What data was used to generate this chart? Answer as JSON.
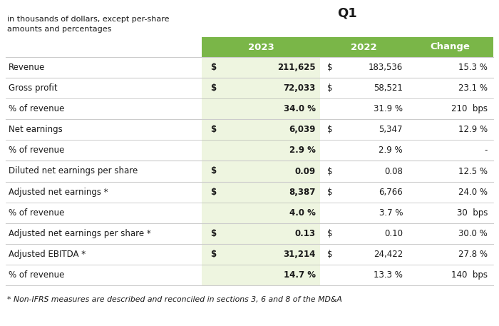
{
  "title": "Q1",
  "subtitle_line1": "in thousands of dollars, except per-share",
  "subtitle_line2": "amounts and percentages",
  "header_labels": [
    "2023",
    "2022",
    "Change"
  ],
  "header_bg_color": "#7ab648",
  "header_text_color": "#ffffff",
  "col1_bg_color": "#eef5e0",
  "bg_color": "#ffffff",
  "footnote": "* Non-IFRS measures are described and reconciled in sections 3, 6 and 8 of the MD&A",
  "rows": [
    {
      "label": "Revenue",
      "col1_dollar": "$",
      "col1_value": "211,625",
      "col1_bold": true,
      "col2_dollar": "$",
      "col2_value": "183,536",
      "col2_bold": false,
      "col3_value": "15.3 %",
      "separator_above": true
    },
    {
      "label": "Gross profit",
      "col1_dollar": "$",
      "col1_value": "72,033",
      "col1_bold": true,
      "col2_dollar": "$",
      "col2_value": "58,521",
      "col2_bold": false,
      "col3_value": "23.1 %",
      "separator_above": true
    },
    {
      "label": "% of revenue",
      "col1_dollar": "",
      "col1_value": "34.0 %",
      "col1_bold": true,
      "col2_dollar": "",
      "col2_value": "31.9 %",
      "col2_bold": false,
      "col3_value": "210  bps",
      "separator_above": false
    },
    {
      "label": "Net earnings",
      "col1_dollar": "$",
      "col1_value": "6,039",
      "col1_bold": true,
      "col2_dollar": "$",
      "col2_value": "5,347",
      "col2_bold": false,
      "col3_value": "12.9 %",
      "separator_above": true
    },
    {
      "label": "% of revenue",
      "col1_dollar": "",
      "col1_value": "2.9 %",
      "col1_bold": true,
      "col2_dollar": "",
      "col2_value": "2.9 %",
      "col2_bold": false,
      "col3_value": "-",
      "separator_above": false
    },
    {
      "label": "Diluted net earnings per share",
      "col1_dollar": "$",
      "col1_value": "0.09",
      "col1_bold": true,
      "col2_dollar": "$",
      "col2_value": "0.08",
      "col2_bold": false,
      "col3_value": "12.5 %",
      "separator_above": true
    },
    {
      "label": "Adjusted net earnings *",
      "col1_dollar": "$",
      "col1_value": "8,387",
      "col1_bold": true,
      "col2_dollar": "$",
      "col2_value": "6,766",
      "col2_bold": false,
      "col3_value": "24.0 %",
      "separator_above": true
    },
    {
      "label": "% of revenue",
      "col1_dollar": "",
      "col1_value": "4.0 %",
      "col1_bold": true,
      "col2_dollar": "",
      "col2_value": "3.7 %",
      "col2_bold": false,
      "col3_value": "30  bps",
      "separator_above": false
    },
    {
      "label": "Adjusted net earnings per share *",
      "col1_dollar": "$",
      "col1_value": "0.13",
      "col1_bold": true,
      "col2_dollar": "$",
      "col2_value": "0.10",
      "col2_bold": false,
      "col3_value": "30.0 %",
      "separator_above": true
    },
    {
      "label": "Adjusted EBITDA *",
      "col1_dollar": "$",
      "col1_value": "31,214",
      "col1_bold": true,
      "col2_dollar": "$",
      "col2_value": "24,422",
      "col2_bold": false,
      "col3_value": "27.8 %",
      "separator_above": true
    },
    {
      "label": "% of revenue",
      "col1_dollar": "",
      "col1_value": "14.7 %",
      "col1_bold": true,
      "col2_dollar": "",
      "col2_value": "13.3 %",
      "col2_bold": false,
      "col3_value": "140  bps",
      "separator_above": false
    }
  ],
  "line_color": "#cccccc",
  "text_color": "#1a1a1a"
}
